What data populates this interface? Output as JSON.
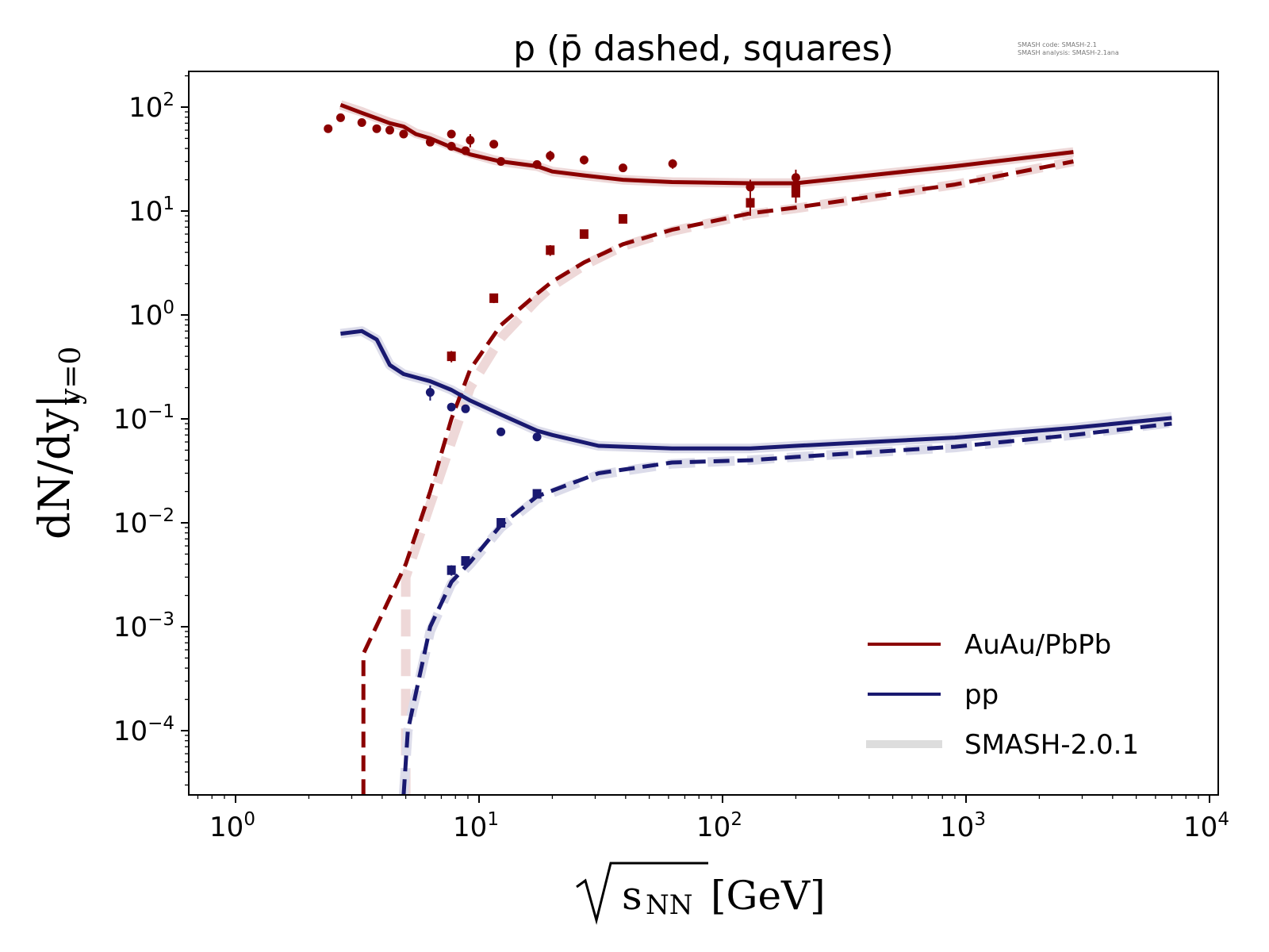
{
  "chart_data": {
    "type": "line",
    "title": "p (p̄ dashed, squares)",
    "meta_text": [
      "SMASH code:      SMASH-2.1",
      "SMASH analysis: SMASH-2.1ana"
    ],
    "xlabel": "√s_NN [GeV]",
    "xlabel_parts": {
      "root": "√",
      "var": "s",
      "sub": "NN",
      "unit": "[GeV]"
    },
    "ylabel": "dN/dy|y=0",
    "ylabel_parts": {
      "main": "dN/dy|",
      "sub": "y=0"
    },
    "xscale": "log",
    "yscale": "log",
    "xlim": [
      0.65,
      11000
    ],
    "ylim": [
      2.4e-05,
      215
    ],
    "x_ticks": [
      {
        "value": 1,
        "base": "10",
        "exp": "0"
      },
      {
        "value": 10,
        "base": "10",
        "exp": "1"
      },
      {
        "value": 100,
        "base": "10",
        "exp": "2"
      },
      {
        "value": 1000,
        "base": "10",
        "exp": "3"
      },
      {
        "value": 10000,
        "base": "10",
        "exp": "4"
      }
    ],
    "y_ticks": [
      {
        "value": 100,
        "base": "10",
        "exp": "2"
      },
      {
        "value": 10,
        "base": "10",
        "exp": "1"
      },
      {
        "value": 1,
        "base": "10",
        "exp": "0"
      },
      {
        "value": 0.1,
        "base": "10",
        "exp": "−1"
      },
      {
        "value": 0.01,
        "base": "10",
        "exp": "−2"
      },
      {
        "value": 0.001,
        "base": "10",
        "exp": "−3"
      },
      {
        "value": 0.0001,
        "base": "10",
        "exp": "−4"
      }
    ],
    "grid": false,
    "legend_position": "bottom-right",
    "legend": [
      {
        "label": "AuAu/PbPb",
        "color": "#8b0000",
        "style": "line"
      },
      {
        "label": "pp",
        "color": "#191970",
        "style": "line"
      },
      {
        "label": "SMASH-2.0.1",
        "color": "#dddddd",
        "style": "band"
      }
    ],
    "colors": {
      "auau": "#8b0000",
      "pp": "#191970",
      "auau_band": "#eed8d8",
      "pp_band": "#dcdcea",
      "legend_band": "#dddddd"
    },
    "series": [
      {
        "name": "AuAu/PbPb p (SMASH-2.0.1)",
        "color_key": "auau_band",
        "kind": "band",
        "dashed": false,
        "x": [
          2.7,
          3.3,
          3.8,
          4.3,
          4.9,
          5.5,
          6.3,
          7.7,
          9.2,
          11.5,
          12.3,
          17.3,
          20,
          27,
          39,
          62,
          130,
          200,
          900,
          2760
        ],
        "y": [
          105,
          90,
          79,
          71,
          65,
          56,
          51,
          42,
          36,
          31,
          30,
          27,
          24,
          22,
          20,
          19,
          18.6,
          18.6,
          27,
          37
        ]
      },
      {
        "name": "AuAu/PbPb p",
        "color_key": "auau",
        "kind": "line",
        "dashed": false,
        "x": [
          2.7,
          3.3,
          3.8,
          4.3,
          4.9,
          5.5,
          6.3,
          7.7,
          9.2,
          11.5,
          12.3,
          17.3,
          20,
          27,
          39,
          62,
          130,
          200,
          900,
          2760
        ],
        "y": [
          105,
          88,
          78,
          70,
          65,
          55,
          50,
          41,
          35,
          31,
          30,
          27,
          24,
          22,
          20,
          19,
          18.5,
          18.5,
          27,
          37
        ]
      },
      {
        "name": "AuAu/PbPb pbar (SMASH-2.0.1)",
        "color_key": "auau_band",
        "kind": "band",
        "dashed": true,
        "x": [
          5.0,
          5.0,
          6.3,
          7.7,
          9.2,
          12.3,
          17.3,
          20,
          27,
          39,
          62,
          130,
          200,
          900,
          2760
        ],
        "y": [
          2.4e-05,
          0.003,
          0.015,
          0.06,
          0.2,
          0.6,
          1.4,
          1.9,
          3.0,
          4.6,
          6.4,
          9.3,
          10.6,
          18,
          30
        ]
      },
      {
        "name": "AuAu/PbPb pbar",
        "color_key": "auau",
        "kind": "line",
        "dashed": true,
        "x": [
          3.35,
          3.35,
          5.0,
          6.3,
          7.7,
          9.2,
          12.3,
          17.3,
          20,
          27,
          39,
          62,
          130,
          200,
          900,
          2760
        ],
        "y": [
          2.4e-05,
          0.00055,
          0.004,
          0.02,
          0.1,
          0.3,
          0.8,
          1.6,
          2.1,
          3.2,
          4.8,
          6.6,
          9.5,
          10.8,
          18,
          30
        ]
      },
      {
        "name": "pp p (SMASH-2.0.1)",
        "color_key": "pp_band",
        "kind": "band",
        "dashed": false,
        "x": [
          2.7,
          3.3,
          3.8,
          4.3,
          4.9,
          6.3,
          7.7,
          9.2,
          12.3,
          17.3,
          20,
          31,
          62,
          130,
          200,
          900,
          2760,
          7000
        ],
        "y": [
          0.66,
          0.7,
          0.58,
          0.33,
          0.27,
          0.23,
          0.19,
          0.15,
          0.11,
          0.077,
          0.07,
          0.055,
          0.052,
          0.052,
          0.055,
          0.066,
          0.082,
          0.105
        ]
      },
      {
        "name": "pp p",
        "color_key": "pp",
        "kind": "line",
        "dashed": false,
        "x": [
          2.7,
          3.3,
          3.8,
          4.3,
          4.9,
          6.3,
          7.7,
          9.2,
          12.3,
          17.3,
          20,
          31,
          62,
          130,
          200,
          900,
          2760,
          7000
        ],
        "y": [
          0.66,
          0.7,
          0.58,
          0.33,
          0.27,
          0.23,
          0.19,
          0.15,
          0.11,
          0.077,
          0.07,
          0.055,
          0.052,
          0.052,
          0.055,
          0.066,
          0.082,
          0.102
        ]
      },
      {
        "name": "pp pbar (SMASH-2.0.1)",
        "color_key": "pp_band",
        "kind": "band",
        "dashed": true,
        "x": [
          4.9,
          5.1,
          6.3,
          7.7,
          9.2,
          12.3,
          17.3,
          31,
          62,
          130,
          200,
          900,
          2760,
          7000
        ],
        "y": [
          2.4e-05,
          0.0001,
          0.0009,
          0.0026,
          0.004,
          0.009,
          0.017,
          0.029,
          0.037,
          0.04,
          0.043,
          0.053,
          0.07,
          0.092
        ]
      },
      {
        "name": "pp pbar",
        "color_key": "pp",
        "kind": "line",
        "dashed": true,
        "x": [
          4.9,
          5.1,
          6.3,
          7.7,
          9.2,
          12.3,
          17.3,
          31,
          62,
          130,
          200,
          900,
          2760,
          7000
        ],
        "y": [
          2.4e-05,
          0.0001,
          0.001,
          0.0027,
          0.0042,
          0.0095,
          0.018,
          0.03,
          0.038,
          0.04,
          0.043,
          0.054,
          0.07,
          0.09
        ]
      }
    ],
    "data_points": [
      {
        "name": "AuAu/PbPb p data",
        "color_key": "auau",
        "marker": "circle",
        "x": [
          2.4,
          2.7,
          3.3,
          3.8,
          4.3,
          4.9,
          6.3,
          7.7,
          7.7,
          8.8,
          9.2,
          11.5,
          12.3,
          17.3,
          19.6,
          27,
          39,
          62.4,
          130,
          200,
          200
        ],
        "y": [
          62,
          79,
          71,
          62,
          60,
          55,
          46,
          55,
          42,
          38,
          48,
          44,
          30,
          28,
          34,
          31,
          26,
          28.5,
          17,
          18,
          21
        ],
        "yerr": [
          2,
          3,
          3,
          2,
          2,
          2,
          3,
          4,
          3,
          3,
          7,
          4,
          2,
          2,
          4,
          3,
          2,
          3,
          3,
          4,
          4
        ]
      },
      {
        "name": "AuAu/PbPb pbar data",
        "color_key": "auau",
        "marker": "square",
        "x": [
          7.7,
          11.5,
          19.6,
          27,
          39,
          130,
          200,
          200
        ],
        "y": [
          0.4,
          1.45,
          4.2,
          6.0,
          8.4,
          12,
          15,
          16.5
        ],
        "yerr": [
          0.05,
          0.15,
          0.5,
          0.5,
          0.7,
          3,
          3,
          3
        ]
      },
      {
        "name": "pp p data",
        "color_key": "pp",
        "marker": "circle",
        "x": [
          6.3,
          7.7,
          8.8,
          12.3,
          17.3
        ],
        "y": [
          0.18,
          0.13,
          0.125,
          0.075,
          0.067
        ],
        "yerr": [
          0.03,
          0.005,
          0.005,
          0.004,
          0.004
        ]
      },
      {
        "name": "pp pbar data",
        "color_key": "pp",
        "marker": "square",
        "x": [
          7.7,
          8.8,
          12.3,
          17.3
        ],
        "y": [
          0.0035,
          0.0043,
          0.01,
          0.019
        ],
        "yerr": [
          0.0004,
          0.0004,
          0.0008,
          0.0015
        ]
      }
    ]
  }
}
